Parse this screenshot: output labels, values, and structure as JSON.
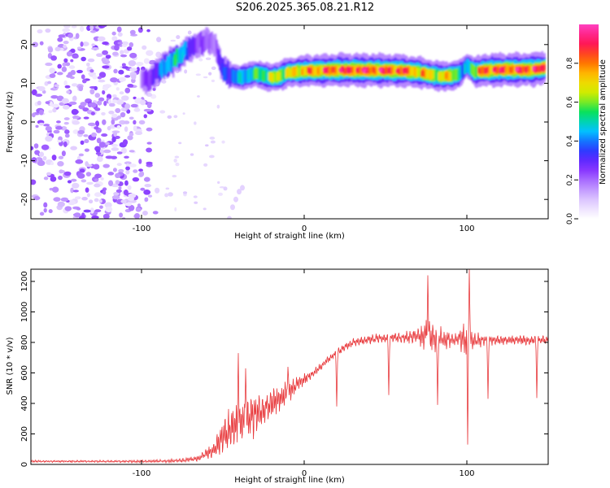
{
  "figure_title": "S206.2025.365.08.21.R12",
  "colors": {
    "axis": "#000000",
    "snr_line": "#e8393c",
    "colormap": [
      "#ffffff",
      "#e0ccff",
      "#b27dff",
      "#7a1fff",
      "#2040ff",
      "#00c8ff",
      "#00e060",
      "#c8f000",
      "#ffd000",
      "#ff6000",
      "#ff1060",
      "#ff40c0"
    ]
  },
  "chart_data": [
    {
      "type": "heatmap",
      "title": "S206.2025.365.08.21.R12",
      "xlabel": "Height of straight line (km)",
      "ylabel": "Frequency (Hz)",
      "xlim": [
        -168,
        150
      ],
      "ylim": [
        -25,
        25
      ],
      "xticks": [
        -100,
        0,
        100
      ],
      "xtick_labels": [
        "-100",
        "0",
        "100"
      ],
      "yticks": [
        -20,
        -10,
        0,
        10,
        20
      ],
      "ytick_labels": [
        "-20",
        "-10",
        "0",
        "10",
        "20"
      ],
      "colorbar": {
        "label": "Normalized spectral amplitude",
        "range": [
          0,
          1
        ],
        "ticks": [
          0.0,
          0.2,
          0.4,
          0.6,
          0.8
        ],
        "tick_labels": [
          "0.0",
          "0.2",
          "0.4",
          "0.6",
          "0.8"
        ]
      },
      "ridge": {
        "description": "main spectral peak trace",
        "x": [
          -100,
          -95,
          -90,
          -85,
          -80,
          -75,
          -70,
          -65,
          -60,
          -55,
          -50,
          -45,
          -40,
          -35,
          -30,
          -25,
          -20,
          -15,
          -10,
          -5,
          0,
          10,
          20,
          30,
          40,
          50,
          60,
          70,
          80,
          85,
          90,
          95,
          100,
          105,
          110,
          120,
          130,
          140,
          148
        ],
        "freq_hz": [
          10.5,
          11.0,
          13.0,
          14.5,
          16.0,
          17.5,
          19.0,
          20.0,
          21.0,
          20.0,
          13.5,
          12.0,
          11.5,
          12.0,
          12.5,
          12.0,
          11.5,
          11.8,
          12.8,
          13.0,
          13.2,
          13.3,
          13.4,
          13.4,
          13.4,
          13.3,
          13.3,
          12.9,
          12.0,
          11.8,
          11.9,
          12.3,
          14.5,
          13.0,
          13.3,
          13.5,
          13.5,
          13.6,
          14.0
        ],
        "amplitude": [
          0.2,
          0.25,
          0.35,
          0.45,
          0.55,
          0.45,
          0.35,
          0.25,
          0.2,
          0.2,
          0.35,
          0.4,
          0.45,
          0.5,
          0.55,
          0.6,
          0.65,
          0.7,
          0.7,
          0.75,
          0.8,
          0.85,
          0.9,
          0.92,
          0.92,
          0.9,
          0.88,
          0.8,
          0.7,
          0.72,
          0.75,
          0.6,
          0.4,
          0.7,
          0.88,
          0.9,
          0.92,
          0.93,
          0.9
        ]
      },
      "noise_region": {
        "x_range": [
          -168,
          -88
        ],
        "freq_range": [
          -25,
          25
        ],
        "amplitude": 0.15
      },
      "secondary_trace": {
        "x": [
          -46,
          -44,
          -42,
          -40,
          -38
        ],
        "freq_hz": [
          -25,
          -22,
          -20,
          -18,
          -17
        ],
        "amplitude": 0.08
      }
    },
    {
      "type": "line",
      "xlabel": "Height of straight line (km)",
      "ylabel": "SNR (10 * v/v)",
      "xlim": [
        -168,
        150
      ],
      "ylim": [
        0,
        1280
      ],
      "xticks": [
        -100,
        0,
        100
      ],
      "xtick_labels": [
        "-100",
        "0",
        "100"
      ],
      "yticks": [
        0,
        200,
        400,
        600,
        800,
        1000,
        1200
      ],
      "ytick_labels": [
        "0",
        "200",
        "400",
        "600",
        "800",
        "1000",
        "1200"
      ],
      "envelope": {
        "x": [
          -168,
          -130,
          -100,
          -85,
          -75,
          -65,
          -55,
          -50,
          -45,
          -40,
          -35,
          -30,
          -25,
          -20,
          -15,
          -10,
          -5,
          0,
          5,
          10,
          15,
          20,
          25,
          30,
          40,
          50,
          60,
          70,
          75,
          80,
          85,
          90,
          95,
          100,
          105,
          110,
          120,
          130,
          140,
          150
        ],
        "baseline": [
          20,
          20,
          20,
          22,
          25,
          40,
          100,
          180,
          240,
          260,
          300,
          320,
          360,
          400,
          440,
          470,
          520,
          560,
          590,
          640,
          690,
          730,
          770,
          800,
          820,
          830,
          830,
          840,
          840,
          830,
          820,
          820,
          820,
          820,
          815,
          815,
          815,
          815,
          815,
          815
        ],
        "ripple": [
          8,
          8,
          10,
          12,
          15,
          20,
          60,
          130,
          170,
          180,
          170,
          150,
          130,
          110,
          90,
          75,
          55,
          40,
          30,
          25,
          25,
          28,
          30,
          30,
          35,
          35,
          40,
          60,
          120,
          110,
          80,
          60,
          60,
          150,
          60,
          40,
          35,
          35,
          35,
          35
        ]
      },
      "spikes": [
        {
          "x": -40.5,
          "y": 730
        },
        {
          "x": -36,
          "y": 630
        },
        {
          "x": -10,
          "y": 640
        },
        {
          "x": 20,
          "y": 380
        },
        {
          "x": 52,
          "y": 455
        },
        {
          "x": 76,
          "y": 1240
        },
        {
          "x": 82,
          "y": 390
        },
        {
          "x": 100.5,
          "y": 130
        },
        {
          "x": 101.5,
          "y": 1280
        },
        {
          "x": 113,
          "y": 430
        },
        {
          "x": 143,
          "y": 435
        }
      ]
    }
  ]
}
